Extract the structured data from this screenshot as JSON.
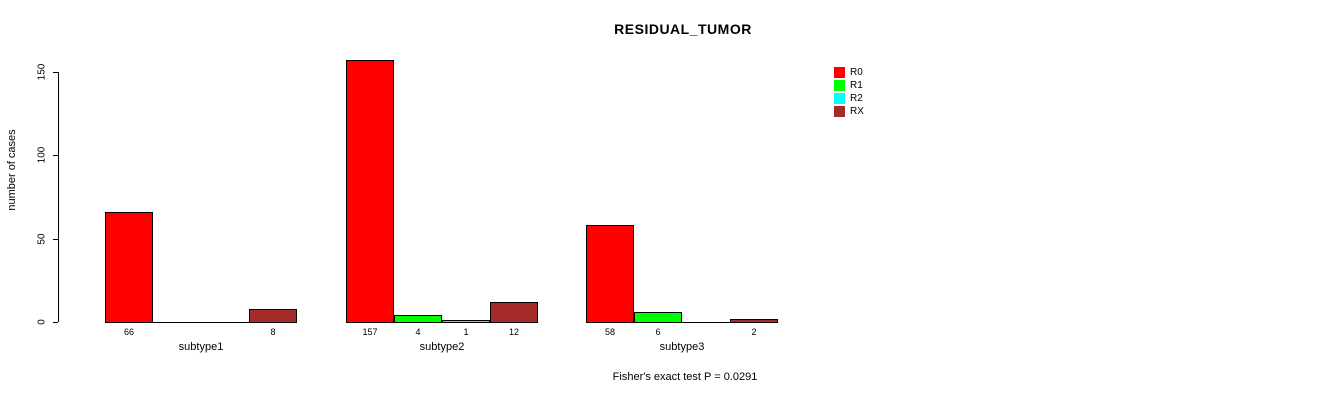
{
  "figure": {
    "title": "RESIDUAL_TUMOR",
    "footer": "Fisher's exact test P = 0.0291"
  },
  "chart_data": {
    "type": "bar",
    "title": "RESIDUAL_TUMOR",
    "xlabel": "",
    "ylabel": "number of cases",
    "categories": [
      "subtype1",
      "subtype2",
      "subtype3"
    ],
    "series": [
      {
        "name": "R0",
        "color": "#FF0000",
        "values": [
          66,
          157,
          58
        ]
      },
      {
        "name": "R1",
        "color": "#00FF00",
        "values": [
          0,
          4,
          6
        ]
      },
      {
        "name": "R2",
        "color": "#00FFFF",
        "values": [
          0,
          1,
          0
        ]
      },
      {
        "name": "RX",
        "color": "#A52A2A",
        "values": [
          8,
          12,
          2
        ]
      }
    ],
    "bar_value_labels": {
      "subtype1": [
        "66",
        "",
        "",
        "8"
      ],
      "subtype2": [
        "157",
        "4",
        "1",
        "12"
      ],
      "subtype3": [
        "58",
        "6",
        "",
        "2"
      ]
    },
    "zero_value_labels_hidden": true,
    "yticks": [
      "0",
      "50",
      "100",
      "150"
    ],
    "ylim": [
      0,
      157
    ],
    "grid": false,
    "legend_position": "top-right",
    "legend_entries": [
      "R0",
      "R1",
      "R2",
      "RX"
    ],
    "annotation": "Fisher's exact test P = 0.0291",
    "bar_border_color": "#000000",
    "background_color": "#FFFFFF"
  }
}
